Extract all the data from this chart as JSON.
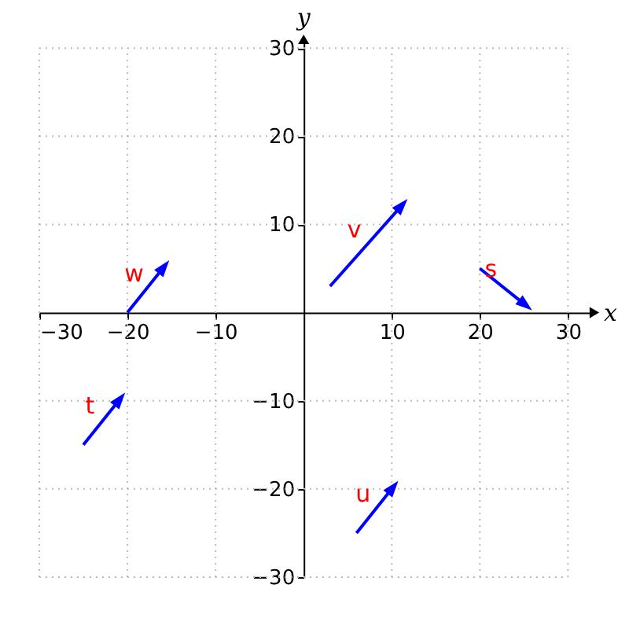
{
  "chart_data": {
    "type": "line",
    "xlabel": "x",
    "ylabel": "y",
    "xlim": [
      -30,
      33
    ],
    "ylim": [
      -30,
      31
    ],
    "xticks": [
      -30,
      -20,
      -10,
      10,
      20,
      30
    ],
    "yticks": [
      -30,
      -20,
      -10,
      10,
      20,
      30
    ],
    "grid": true,
    "marker": "triangle",
    "line_style": "solid",
    "series": [
      {
        "name": "v",
        "color": "#0000ff",
        "x": [
          3,
          11
        ],
        "values": [
          3,
          12
        ]
      },
      {
        "name": "s",
        "color": "#0000ff",
        "x": [
          20,
          25
        ],
        "values": [
          5,
          1
        ]
      },
      {
        "name": "w",
        "color": "#0000ff",
        "x": [
          -20,
          -16
        ],
        "values": [
          0,
          5
        ]
      },
      {
        "name": "t",
        "color": "#0000ff",
        "x": [
          -25,
          -21
        ],
        "values": [
          -15,
          -10
        ]
      },
      {
        "name": "u",
        "color": "#0000ff",
        "x": [
          6,
          10
        ],
        "values": [
          -25,
          -20
        ]
      }
    ]
  }
}
